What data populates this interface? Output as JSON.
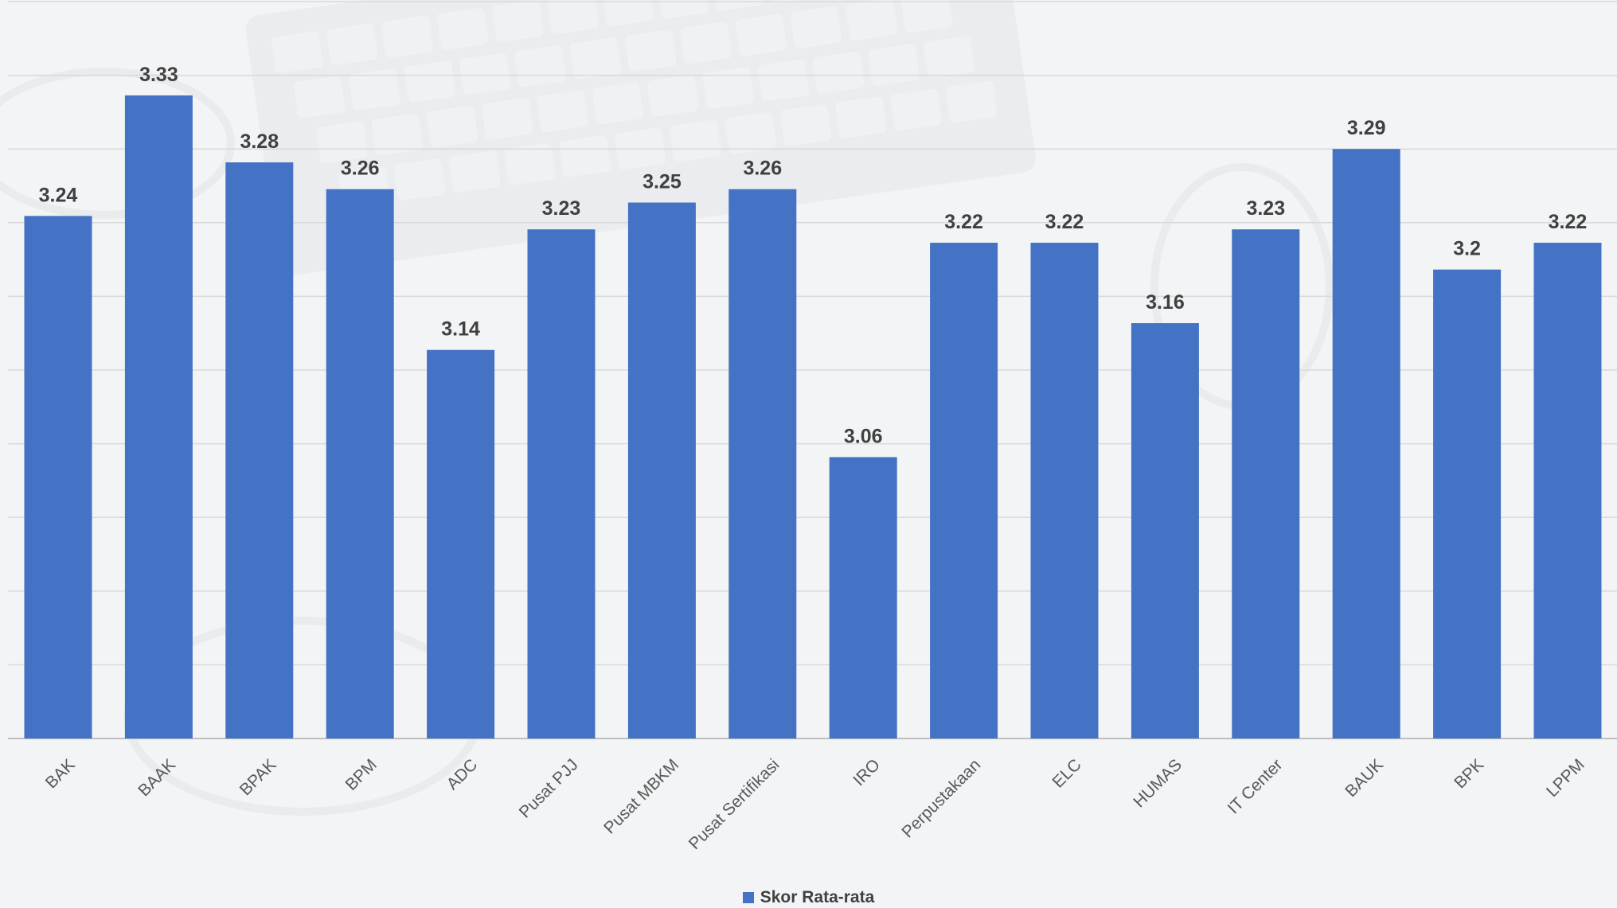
{
  "chart_data": {
    "type": "bar",
    "categories": [
      "BAK",
      "BAAK",
      "BPAK",
      "BPM",
      "ADC",
      "Pusat PJJ",
      "Pusat MBKM",
      "Pusat Sertifikasi",
      "IRO",
      "Perpustakaan",
      "ELC",
      "HUMAS",
      "IT Center",
      "BAUK",
      "BPK",
      "LPPM"
    ],
    "series": [
      {
        "name": "Skor Rata-rata",
        "values": [
          3.24,
          3.33,
          3.28,
          3.26,
          3.14,
          3.23,
          3.25,
          3.26,
          3.06,
          3.22,
          3.22,
          3.16,
          3.23,
          3.29,
          3.2,
          3.22
        ],
        "labels": [
          "3.24",
          "3.33",
          "3.28",
          "3.26",
          "3.14",
          "3.23",
          "3.25",
          "3.26",
          "3.06",
          "3.22",
          "3.22",
          "3.16",
          "3.23",
          "3.29",
          "3.2",
          "3.22"
        ],
        "color": "#4472c4"
      }
    ],
    "ylim": [
      2.85,
      3.4
    ],
    "grid": true,
    "legend_position": "bottom"
  }
}
